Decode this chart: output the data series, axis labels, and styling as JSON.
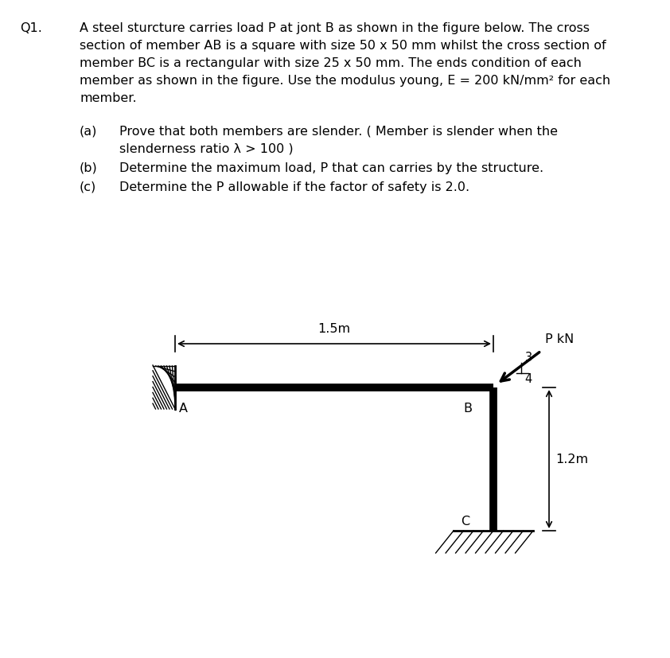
{
  "title_q": "Q1.",
  "line1": "A steel sturcture carries load P at jont B as shown in the figure below. The cross",
  "line2": "section of member AB is a square with size 50 x 50 mm whilst the cross section of",
  "line3": "member BC is a rectangular with size 25 x 50 mm. The ends condition of each",
  "line4": "member as shown in the figure. Use the modulus young, E = 200 kN/mm² for each",
  "line5": "member.",
  "part_a_label": "(a)",
  "part_a_line1": "Prove that both members are slender. ( Member is slender when the",
  "part_a_line2": "slenderness ratio λ > 100 )",
  "part_b_label": "(b)",
  "part_b_text": "Determine the maximum load, P that can carries by the structure.",
  "part_c_label": "(c)",
  "part_c_text": "Determine the P allowable if the factor of safety is 2.0.",
  "label_15m": "1.5m",
  "label_12m": "1.2m",
  "label_PKN": "P kN",
  "label_3": "3",
  "label_4": "4",
  "label_A": "A",
  "label_B": "B",
  "label_C": "C",
  "bg_color": "#ffffff",
  "text_color": "#000000",
  "struct_color": "#000000",
  "hatch_color": "#000000",
  "font_size_main": 11.5,
  "font_size_small": 10.5
}
